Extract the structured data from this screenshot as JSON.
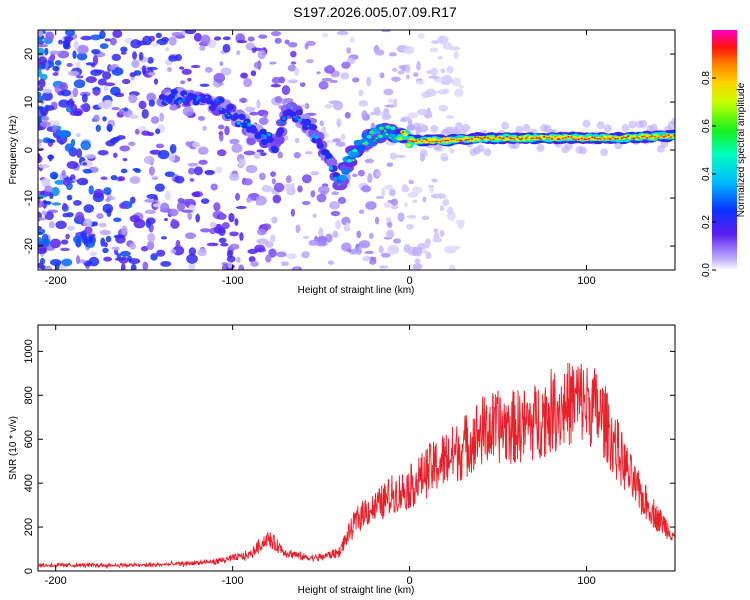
{
  "figure": {
    "title": "S197.2026.005.07.09.R17"
  },
  "chart_data": [
    {
      "type": "heatmap",
      "name": "spectrogram",
      "xlabel": "Height of straight line (km)",
      "ylabel": "Frequency (Hz)",
      "xlim": [
        -210,
        150
      ],
      "ylim": [
        -25,
        25
      ],
      "xticks": [
        -200,
        -100,
        0,
        100
      ],
      "yticks": [
        -20,
        -10,
        0,
        10,
        20
      ],
      "ridge": {
        "description": "dominant frequency track",
        "x": [
          -135,
          -125,
          -115,
          -105,
          -95,
          -85,
          -75,
          -70,
          -60,
          -50,
          -45,
          -40,
          -35,
          -30,
          -25,
          -20,
          -15,
          -10,
          -5,
          0,
          20,
          40,
          60,
          80,
          100,
          120,
          150
        ],
        "y": [
          11,
          11,
          10,
          9,
          6,
          3,
          1,
          9,
          6,
          2,
          -3,
          -7,
          -3,
          0,
          2,
          3,
          4,
          3.5,
          3,
          2,
          2,
          2.5,
          2.5,
          2.5,
          2.5,
          2.5,
          3
        ]
      },
      "colorbar": {
        "label": "Normalized spectral amplitude",
        "ticks": [
          0.0,
          0.2,
          0.4,
          0.6,
          0.8
        ],
        "range": [
          0,
          1
        ]
      }
    },
    {
      "type": "line",
      "name": "snr",
      "xlabel": "Height of straight line (km)",
      "ylabel": "SNR (10 * v/v)",
      "xlim": [
        -210,
        150
      ],
      "ylim": [
        0,
        1120
      ],
      "xticks": [
        -200,
        -100,
        0,
        100
      ],
      "yticks": [
        0,
        200,
        400,
        600,
        800,
        1000
      ],
      "color": "#e8202a",
      "series": [
        {
          "name": "SNR",
          "x": [
            -210,
            -180,
            -150,
            -130,
            -110,
            -90,
            -85,
            -80,
            -75,
            -70,
            -65,
            -60,
            -55,
            -50,
            -45,
            -40,
            -35,
            -30,
            -25,
            -20,
            -15,
            -10,
            -5,
            0,
            10,
            20,
            30,
            40,
            50,
            60,
            70,
            80,
            90,
            95,
            100,
            105,
            110,
            115,
            120,
            125,
            130,
            135,
            140,
            145,
            150
          ],
          "y": [
            25,
            25,
            25,
            30,
            40,
            70,
            110,
            140,
            110,
            80,
            70,
            60,
            55,
            60,
            70,
            80,
            150,
            220,
            260,
            270,
            300,
            330,
            340,
            360,
            430,
            480,
            530,
            600,
            620,
            620,
            640,
            690,
            720,
            740,
            720,
            700,
            650,
            560,
            480,
            400,
            330,
            280,
            230,
            190,
            150
          ]
        }
      ]
    }
  ]
}
